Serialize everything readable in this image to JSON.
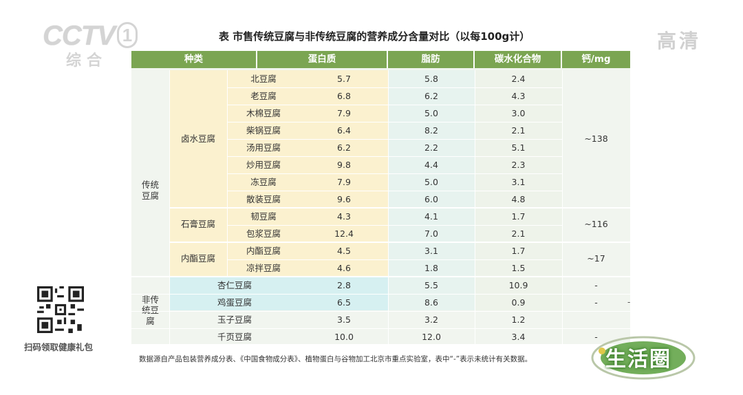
{
  "broadcaster": {
    "logo": "CCTV",
    "channel_number": "1",
    "channel_name": "综合"
  },
  "hd_badge": "高清",
  "title": "表 市售传统豆腐与非传统豆腐的营养成分含量对比（以每100g计）",
  "table": {
    "headers": {
      "type": "种类",
      "protein": "蛋白质",
      "fat": "脂肪",
      "carbs": "碳水化合物",
      "calcium": "钙/mg"
    },
    "groups": [
      {
        "label": "传统豆腐",
        "label_lines": [
          "传统",
          "豆腐"
        ]
      },
      {
        "label": "非传统豆腐",
        "label_lines": [
          "非传",
          "统豆",
          "腐"
        ]
      }
    ],
    "subgroups": [
      {
        "label": "卤水豆腐",
        "calcium": "~138"
      },
      {
        "label": "石膏豆腐",
        "calcium": "~116"
      },
      {
        "label": "内酯豆腐",
        "calcium": "~17"
      }
    ],
    "rows": [
      {
        "name": "北豆腐",
        "protein": "5.7",
        "fat": "5.8",
        "carbs": "2.4"
      },
      {
        "name": "老豆腐",
        "protein": "6.8",
        "fat": "6.2",
        "carbs": "4.3"
      },
      {
        "name": "木棉豆腐",
        "protein": "7.9",
        "fat": "5.0",
        "carbs": "3.0"
      },
      {
        "name": "柴锅豆腐",
        "protein": "6.4",
        "fat": "8.2",
        "carbs": "2.1"
      },
      {
        "name": "汤用豆腐",
        "protein": "6.2",
        "fat": "2.2",
        "carbs": "5.1"
      },
      {
        "name": "炒用豆腐",
        "protein": "9.8",
        "fat": "4.4",
        "carbs": "2.3"
      },
      {
        "name": "冻豆腐",
        "protein": "7.9",
        "fat": "5.0",
        "carbs": "3.1"
      },
      {
        "name": "散装豆腐",
        "protein": "9.6",
        "fat": "6.0",
        "carbs": "4.8"
      },
      {
        "name": "韧豆腐",
        "protein": "4.3",
        "fat": "4.1",
        "carbs": "1.7"
      },
      {
        "name": "包浆豆腐",
        "protein": "12.4",
        "fat": "7.0",
        "carbs": "2.1"
      },
      {
        "name": "内酯豆腐",
        "protein": "4.5",
        "fat": "3.1",
        "carbs": "1.7"
      },
      {
        "name": "凉拌豆腐",
        "protein": "4.6",
        "fat": "1.8",
        "carbs": "1.5"
      },
      {
        "name": "杏仁豆腐",
        "protein": "2.8",
        "fat": "5.5",
        "carbs": "10.9",
        "calcium": "-"
      },
      {
        "name": "鸡蛋豆腐",
        "protein": "6.5",
        "fat": "8.6",
        "carbs": "0.9",
        "calcium": "-"
      },
      {
        "name": "玉子豆腐",
        "protein": "3.5",
        "fat": "3.2",
        "carbs": "1.2",
        "calcium": ""
      },
      {
        "name": "千页豆腐",
        "protein": "10.0",
        "fat": "12.0",
        "carbs": "3.4",
        "calcium": "-"
      }
    ]
  },
  "note": "数据源自产品包装营养成分表、《中国食物成分表》、植物蛋白与谷物加工北京市重点实验室，表中“-”表示未统计有关数据。",
  "qr_label": "扫码领取健康礼包",
  "show_logo": "生活圈",
  "corner_dash": "-",
  "colors": {
    "header_green": "#7ba552",
    "yellow_tint": "#fbf1cf",
    "cyan_tint": "#d6f0f1",
    "pale_green": "#f1f5ef",
    "protein_traditional": "#fff6da",
    "fat_column": "#e7f3ef"
  }
}
